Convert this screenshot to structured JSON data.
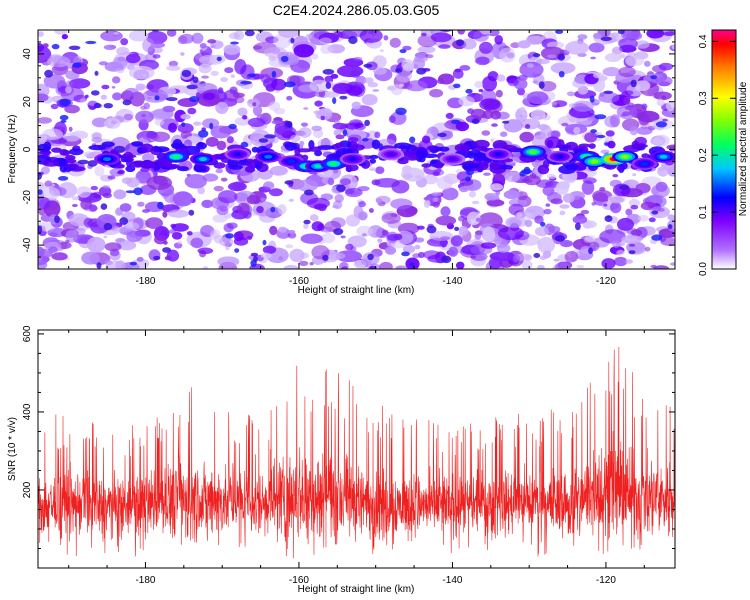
{
  "title": "C2E4.2024.286.05.03.G05",
  "chart_data": [
    {
      "type": "heatmap",
      "title": "C2E4.2024.286.05.03.G05",
      "xlabel": "Height of straight line (km)",
      "ylabel": "Frequency (Hz)",
      "xlim": [
        -194,
        -111
      ],
      "ylim": [
        -50,
        50
      ],
      "xticks": [
        -180,
        -160,
        -140,
        -120
      ],
      "yticks": [
        -40,
        -20,
        0,
        20,
        40
      ],
      "xtick_labels": [
        "-180",
        "-160",
        "-140",
        "-120"
      ],
      "ytick_labels": [
        "-40",
        "-20",
        "0",
        "20",
        "40"
      ],
      "colorbar": {
        "label": "Normalized spectral amplitude",
        "range": [
          0.0,
          0.42
        ],
        "ticks": [
          0.0,
          0.1,
          0.2,
          0.3,
          0.4
        ],
        "tick_labels": [
          "0.0",
          "0.1",
          "0.2",
          "0.3",
          "0.4"
        ],
        "colors": [
          "#ffffff",
          "#7f00ff",
          "#0000ff",
          "#00ffff",
          "#00ff00",
          "#ffff00",
          "#ff8000",
          "#ff0000",
          "#ff0080"
        ]
      },
      "grid": false,
      "hotspots": [
        {
          "x": -185,
          "y": -4,
          "value": 0.16
        },
        {
          "x": -176,
          "y": -3,
          "value": 0.22
        },
        {
          "x": -172.5,
          "y": -4,
          "value": 0.18
        },
        {
          "x": -168,
          "y": -2,
          "value": 0.12
        },
        {
          "x": -164,
          "y": -3,
          "value": 0.16
        },
        {
          "x": -161,
          "y": -5,
          "value": 0.14
        },
        {
          "x": -159,
          "y": -7,
          "value": 0.22
        },
        {
          "x": -157.5,
          "y": -7,
          "value": 0.2
        },
        {
          "x": -155.5,
          "y": -6,
          "value": 0.22
        },
        {
          "x": -153,
          "y": -4,
          "value": 0.12
        },
        {
          "x": -148,
          "y": -2,
          "value": 0.1
        },
        {
          "x": -140,
          "y": -4,
          "value": 0.1
        },
        {
          "x": -134,
          "y": -2,
          "value": 0.12
        },
        {
          "x": -129.5,
          "y": -1,
          "value": 0.24
        },
        {
          "x": -126,
          "y": -3,
          "value": 0.12
        },
        {
          "x": -122.5,
          "y": -3,
          "value": 0.22
        },
        {
          "x": -121.5,
          "y": -5,
          "value": 0.26
        },
        {
          "x": -119,
          "y": -4,
          "value": 0.4
        },
        {
          "x": -117.5,
          "y": -3,
          "value": 0.26
        },
        {
          "x": -115,
          "y": -6,
          "value": 0.14
        },
        {
          "x": -112.5,
          "y": -3,
          "value": 0.18
        }
      ]
    },
    {
      "type": "line",
      "xlabel": "Height of straight line (km)",
      "ylabel": "SNR (10 * v/v)",
      "xlim": [
        -194,
        -111
      ],
      "ylim": [
        0,
        610
      ],
      "xticks": [
        -180,
        -160,
        -140,
        -120
      ],
      "yticks": [
        200,
        400,
        600
      ],
      "xtick_labels": [
        "-180",
        "-160",
        "-140",
        "-120"
      ],
      "ytick_labels": [
        "200",
        "400",
        "600"
      ],
      "color": "#ee2020",
      "grid": false,
      "envelope": {
        "x": [
          -194,
          -190,
          -186,
          -182,
          -178,
          -175,
          -172,
          -168,
          -164,
          -161,
          -159,
          -157,
          -155,
          -150,
          -146,
          -142,
          -138,
          -134,
          -130,
          -126,
          -123,
          -121,
          -119,
          -117,
          -115,
          -112,
          -111
        ],
        "y_max": [
          400,
          390,
          380,
          370,
          390,
          480,
          440,
          400,
          420,
          590,
          530,
          570,
          510,
          430,
          400,
          380,
          370,
          390,
          400,
          410,
          440,
          610,
          600,
          520,
          480,
          470,
          460
        ],
        "y_min": [
          20,
          30,
          30,
          30,
          20,
          30,
          40,
          30,
          20,
          20,
          30,
          20,
          20,
          30,
          40,
          40,
          30,
          40,
          20,
          30,
          30,
          20,
          30,
          30,
          40,
          40,
          40
        ],
        "mean": [
          160,
          165,
          160,
          160,
          170,
          185,
          175,
          165,
          170,
          190,
          185,
          190,
          180,
          165,
          160,
          160,
          160,
          165,
          170,
          165,
          175,
          200,
          200,
          185,
          180,
          180,
          180
        ]
      }
    }
  ]
}
